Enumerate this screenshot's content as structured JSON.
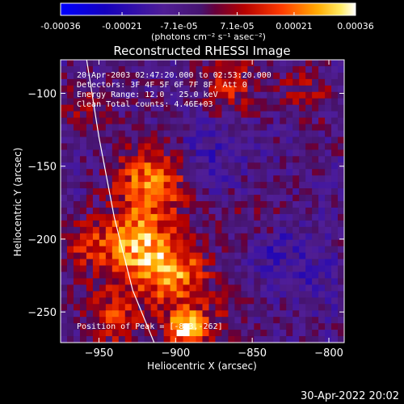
{
  "colorbar": {
    "ticks": [
      "-0.00036",
      "-0.00021",
      "-7.1e-05",
      "7.1e-05",
      "0.00021",
      "0.00036"
    ],
    "units": "(photons cm⁻² s⁻¹ asec⁻²)"
  },
  "footer": {
    "timestamp": "30-Apr-2022 20:02"
  },
  "colors": {
    "background": "#000000",
    "text": "#ffffff",
    "limb": "#ffffff"
  },
  "chart_data": {
    "type": "heatmap",
    "title": "Reconstructed RHESSI Image",
    "xlabel": "Heliocentric X (arcsec)",
    "ylabel": "Heliocentric Y (arcsec)",
    "xlim": [
      -975,
      -790
    ],
    "ylim": [
      -271,
      -77
    ],
    "xticks": [
      -950,
      -900,
      -850,
      -800
    ],
    "yticks": [
      -100,
      -150,
      -200,
      -250
    ],
    "vmin": -0.00036,
    "vmax": 0.00036,
    "annotations": [
      "20-Apr-2003 02:47:20.000 to 02:53:20.000",
      "Detectors: 3F 4F 5F 6F 7F 8F, Att 0",
      "Energy Range: 12.0 - 25.0 keV",
      "Clean     Total counts: 4.46E+03"
    ],
    "peak_label": "Position of Peak = [-893,-262]",
    "peak": [
      -893,
      -262
    ],
    "limb_points": [
      [
        -958,
        -77
      ],
      [
        -950,
        -130
      ],
      [
        -940,
        -185
      ],
      [
        -928,
        -235
      ],
      [
        -914,
        -271
      ]
    ],
    "sources": [
      {
        "x": -915,
        "y": -160,
        "amp": 0.0003,
        "sigma": 16
      },
      {
        "x": -925,
        "y": -205,
        "amp": 0.00032,
        "sigma": 18
      },
      {
        "x": -900,
        "y": -225,
        "amp": 0.00026,
        "sigma": 15
      },
      {
        "x": -893,
        "y": -262,
        "amp": 0.00036,
        "sigma": 10
      },
      {
        "x": -940,
        "y": -255,
        "amp": 0.00018,
        "sigma": 14
      },
      {
        "x": -865,
        "y": -95,
        "amp": 0.00016,
        "sigma": 14
      },
      {
        "x": -815,
        "y": -100,
        "amp": 0.00012,
        "sigma": 12
      },
      {
        "x": -960,
        "y": -110,
        "amp": 0.0001,
        "sigma": 12
      },
      {
        "x": -845,
        "y": -190,
        "amp": 0.0001,
        "sigma": 13
      },
      {
        "x": -870,
        "y": -250,
        "amp": 8e-05,
        "sigma": 12
      },
      {
        "x": -960,
        "y": -205,
        "amp": 0.00012,
        "sigma": 12
      },
      {
        "x": -835,
        "y": -205,
        "amp": -0.00012,
        "sigma": 14
      },
      {
        "x": -880,
        "y": -140,
        "amp": -8e-05,
        "sigma": 18
      },
      {
        "x": -810,
        "y": -230,
        "amp": -6e-05,
        "sigma": 16
      }
    ]
  }
}
